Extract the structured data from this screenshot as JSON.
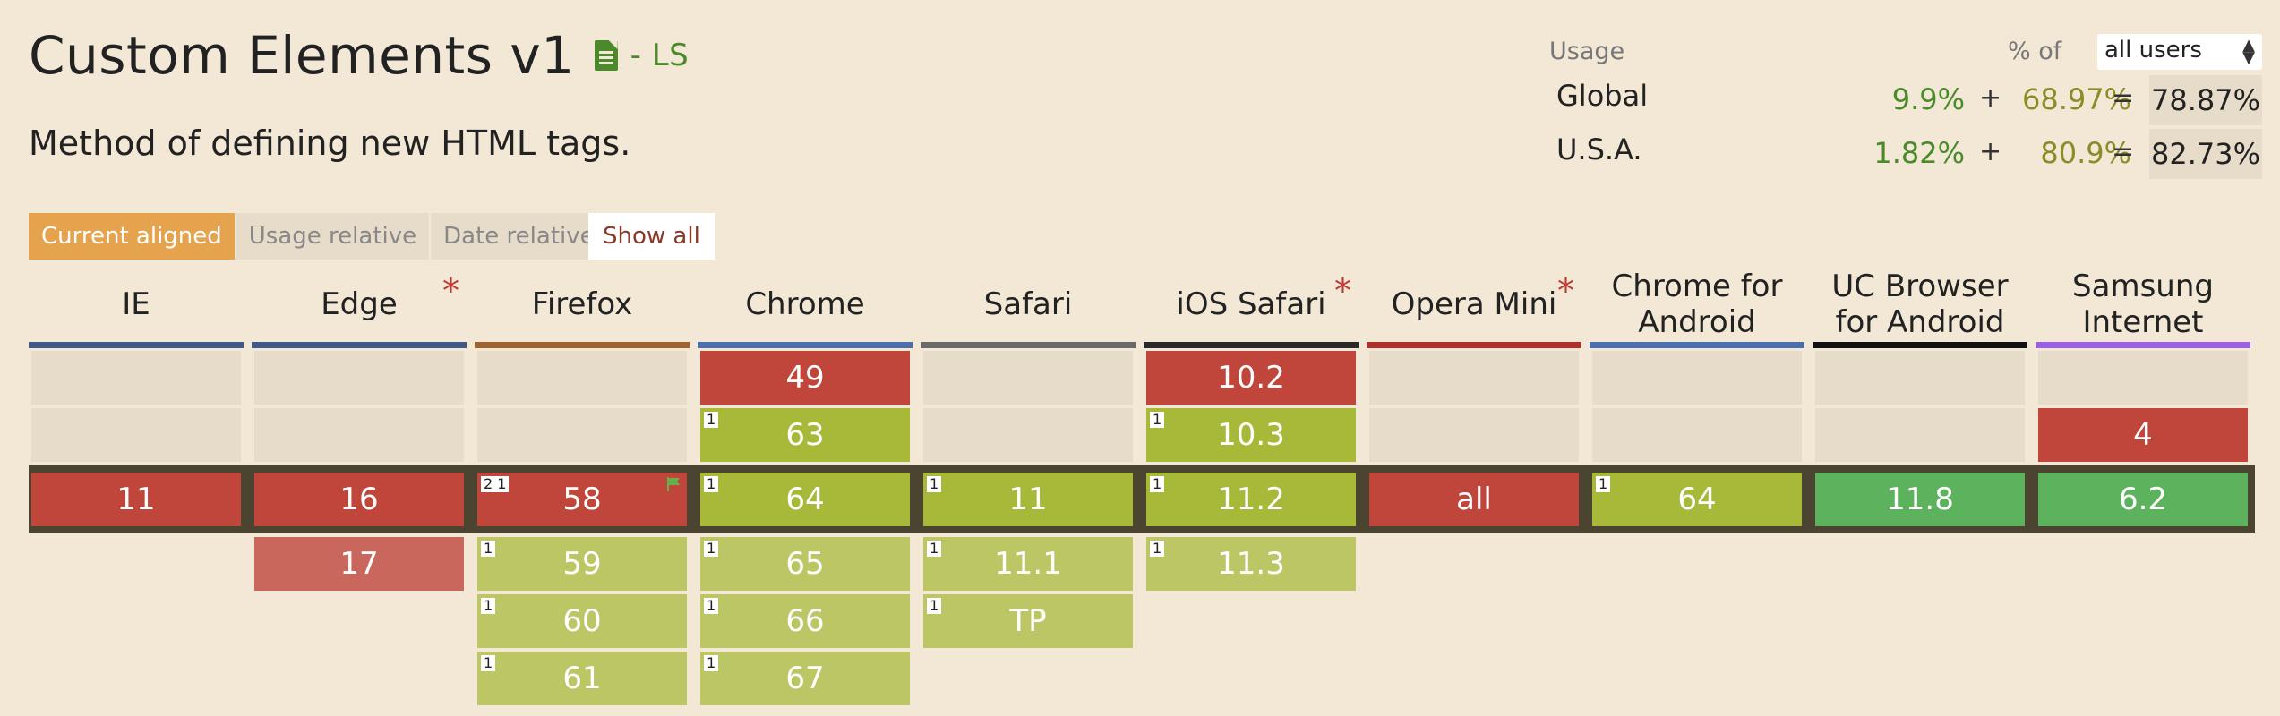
{
  "header": {
    "title": "Custom Elements v1",
    "status": "- LS",
    "description": "Method of defining new HTML tags."
  },
  "usage": {
    "label": "Usage",
    "pct_of_label": "% of",
    "selected": "all users",
    "rows": [
      {
        "region": "Global",
        "supported": "9.9%",
        "plus": "+",
        "partial": "68.97%",
        "eq": "=",
        "total": "78.87%"
      },
      {
        "region": "U.S.A.",
        "supported": "1.82%",
        "plus": "+",
        "partial": "80.9%",
        "eq": "=",
        "total": "82.73%"
      }
    ]
  },
  "tabs": [
    "Current aligned",
    "Usage relative",
    "Date relative"
  ],
  "show_all": "Show all",
  "browsers": [
    {
      "name": "IE",
      "note": "",
      "color": "#3f5a8a"
    },
    {
      "name": "Edge",
      "note": "*",
      "color": "#3f5a8a"
    },
    {
      "name": "Firefox",
      "note": "",
      "color": "#a0622e"
    },
    {
      "name": "Chrome",
      "note": "",
      "color": "#4a6fb0"
    },
    {
      "name": "Safari",
      "note": "",
      "color": "#6a6a6a"
    },
    {
      "name": "iOS Safari",
      "note": "*",
      "color": "#2a2a2a"
    },
    {
      "name": "Opera Mini",
      "note": "*",
      "color": "#b0312c"
    },
    {
      "name": "Chrome for Android",
      "note": "",
      "color": "#4a6fb0"
    },
    {
      "name": "UC Browser for Android",
      "note": "",
      "color": "#111111"
    },
    {
      "name": "Samsung Internet",
      "note": "",
      "color": "#9b60e6"
    }
  ],
  "cells": {
    "past2": [
      "",
      "",
      "",
      "49",
      "",
      "10.2",
      "",
      "",
      "",
      ""
    ],
    "past1": [
      "",
      "",
      "",
      "63",
      "",
      "10.3",
      "",
      "",
      "",
      "4"
    ],
    "current": [
      "11",
      "16",
      "58",
      "64",
      "11",
      "11.2",
      "all",
      "64",
      "11.8",
      "6.2"
    ],
    "future1": [
      "",
      "17",
      "59",
      "65",
      "11.1",
      "11.3",
      "",
      "",
      "",
      ""
    ],
    "future2": [
      "",
      "",
      "60",
      "66",
      "TP",
      "",
      "",
      "",
      "",
      ""
    ],
    "future3": [
      "",
      "",
      "61",
      "67",
      "",
      "",
      "",
      "",
      "",
      ""
    ]
  },
  "notes": {
    "past1_chrome": "1",
    "past1_ios": "1",
    "current_firefox": "2 1",
    "current_chrome": "1",
    "current_safari": "1",
    "current_ios": "1",
    "current_chrome_android": "1",
    "future1_firefox": "1",
    "future1_chrome": "1",
    "future1_safari": "1",
    "future1_ios": "1",
    "future2_firefox": "1",
    "future2_chrome": "1",
    "future2_safari": "1",
    "future3_firefox": "1",
    "future3_chrome": "1"
  }
}
